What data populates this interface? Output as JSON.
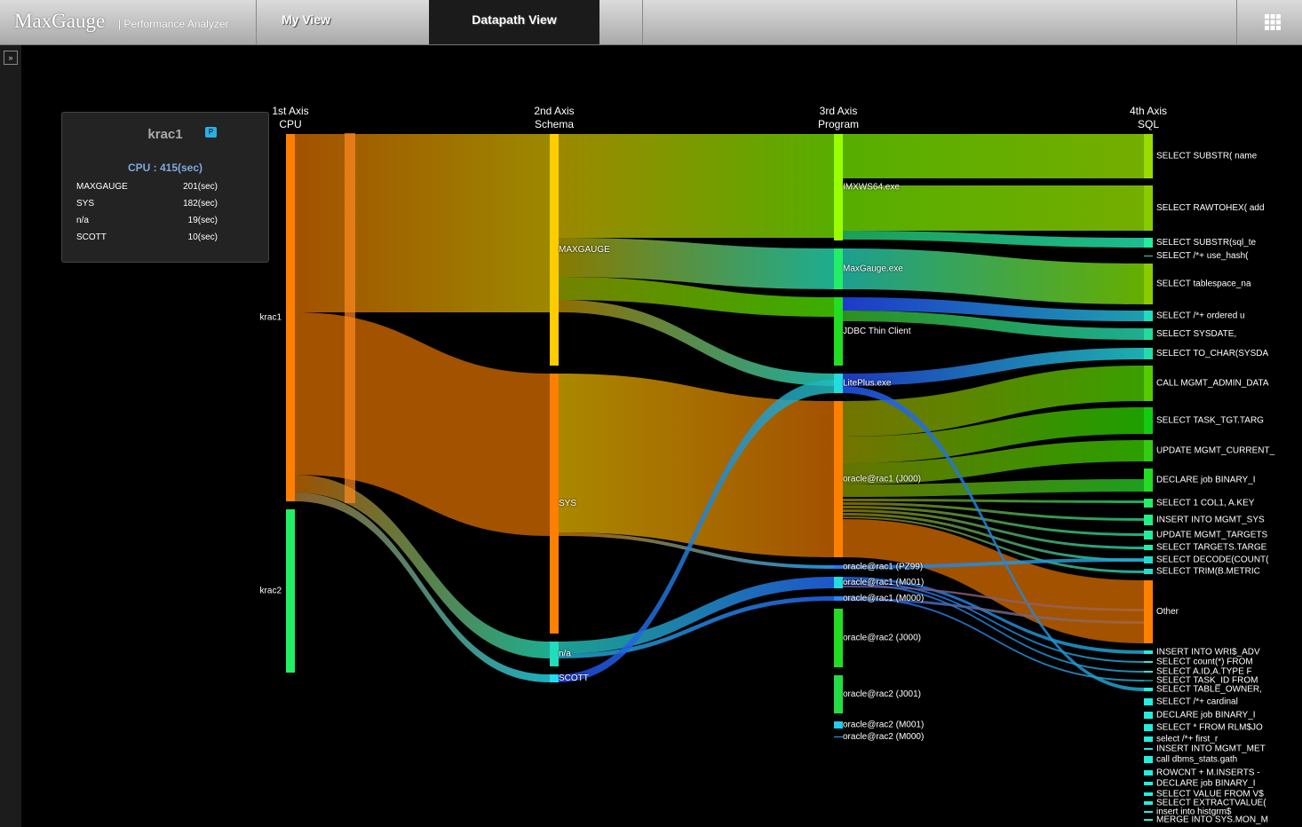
{
  "header": {
    "logo": "MaxGauge",
    "subtitle": "| Performance Analyzer",
    "tabs": [
      "My View",
      "Datapath View"
    ]
  },
  "tooltip": {
    "title": "krac1",
    "badge": "P",
    "summary": "CPU : 415(sec)",
    "rows": [
      [
        "MAXGAUGE",
        "201(sec)"
      ],
      [
        "SYS",
        "182(sec)"
      ],
      [
        "n/a",
        "19(sec)"
      ],
      [
        "SCOTT",
        "10(sec)"
      ]
    ]
  },
  "axes": [
    {
      "title": "1st Axis",
      "subtitle": "CPU",
      "nodes": [
        "krac1",
        "krac2"
      ]
    },
    {
      "title": "2nd Axis",
      "subtitle": "Schema",
      "nodes": [
        "MAXGAUGE",
        "SYS",
        "n/a",
        "SCOTT"
      ]
    },
    {
      "title": "3rd Axis",
      "subtitle": "Program",
      "nodes": [
        "IMXWS64.exe",
        "MaxGauge.exe",
        "JDBC Thin Client",
        "LitePlus.exe",
        "oracle@rac1 (J000)",
        "oracle@rac1 (PZ99)",
        "oracle@rac1 (M001)",
        "oracle@rac1 (M000)",
        "oracle@rac2 (J000)",
        "oracle@rac2 (J001)",
        "oracle@rac2 (M001)",
        "oracle@rac2 (M000)"
      ]
    },
    {
      "title": "4th Axis",
      "subtitle": "SQL",
      "nodes": [
        "SELECT SUBSTR( name",
        "SELECT RAWTOHEX( add",
        "SELECT SUBSTR(sql_te",
        "SELECT /*+ use_hash(",
        "SELECT tablespace_na",
        "SELECT /*+ ordered u",
        "SELECT SYSDATE,",
        "SELECT TO_CHAR(SYSDA",
        "CALL MGMT_ADMIN_DATA",
        "SELECT TASK_TGT.TARG",
        "UPDATE MGMT_CURRENT_",
        "DECLARE job BINARY_I",
        "SELECT 1 COL1, A.KEY",
        "INSERT INTO MGMT_SYS",
        "UPDATE MGMT_TARGETS",
        "SELECT TARGETS.TARGE",
        "SELECT DECODE(COUNT(",
        "SELECT TRIM(B.METRIC",
        "Other",
        "INSERT INTO WRI$_ADV",
        "SELECT count(*) FROM",
        "SELECT A.ID,A.TYPE F",
        "SELECT TASK_ID FROM",
        "SELECT TABLE_OWNER,",
        "SELECT /*+  cardinal",
        "DECLARE job BINARY_I",
        "SELECT * FROM RLM$JO",
        "select   /*+ first_r",
        "INSERT INTO MGMT_MET",
        "call dbms_stats.gath",
        "ROWCNT + M.INSERTS -",
        "DECLARE job BINARY_I",
        "SELECT VALUE FROM V$",
        "SELECT EXTRACTVALUE(",
        "insert into histgrm$",
        "MERGE INTO SYS.MON_M"
      ]
    }
  ]
}
